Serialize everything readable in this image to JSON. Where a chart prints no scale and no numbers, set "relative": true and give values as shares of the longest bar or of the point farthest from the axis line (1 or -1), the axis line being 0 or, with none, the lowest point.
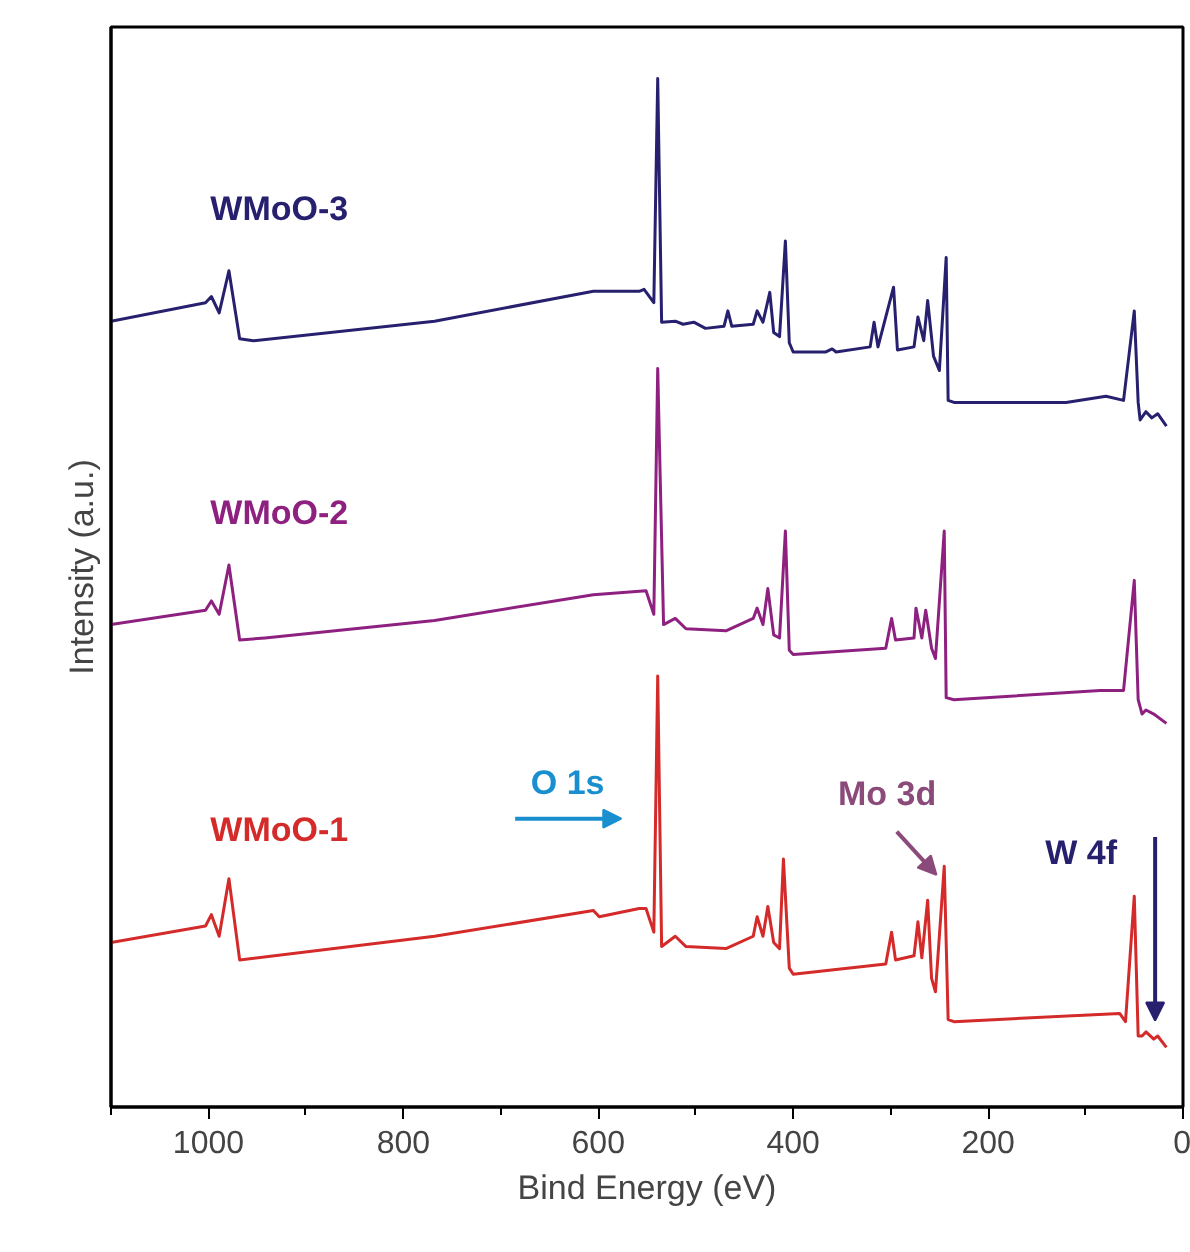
{
  "chart_data": {
    "type": "line",
    "relative": true,
    "xlabel": "Bind Energy (eV)",
    "ylabel": "Intensity (a.u.)",
    "xlim": [
      1100,
      0
    ],
    "xticks": [
      {
        "value": 1100,
        "label": null
      },
      1000,
      {
        "value": 900,
        "label": null
      },
      800,
      {
        "value": 700,
        "label": null
      },
      600,
      {
        "value": 500,
        "label": null
      },
      400,
      {
        "value": 300,
        "label": null
      },
      200,
      {
        "value": 100,
        "label": null
      },
      0
    ],
    "grid": false,
    "marker": "none",
    "line_style": "solid",
    "series": [
      {
        "name": "WMoO-3",
        "color": "#27206e",
        "x": [
          1100,
          1003,
          997,
          989,
          979,
          968,
          954,
          768,
          605,
          558,
          553,
          543,
          539,
          535,
          521,
          513,
          502,
          490,
          471,
          467,
          463,
          441,
          437,
          431,
          424,
          420,
          414,
          408,
          404,
          400,
          367,
          360,
          356,
          321,
          317,
          313,
          297,
          293,
          276,
          272,
          266,
          262,
          256,
          250,
          243,
          241,
          235,
          120,
          79,
          61,
          50,
          46,
          44,
          38,
          32,
          26,
          17
        ],
        "values": [
          0.764,
          0.782,
          0.788,
          0.772,
          0.813,
          0.747,
          0.745,
          0.764,
          0.793,
          0.793,
          0.795,
          0.782,
          1,
          0.763,
          0.764,
          0.761,
          0.763,
          0.757,
          0.759,
          0.774,
          0.759,
          0.761,
          0.774,
          0.763,
          0.792,
          0.753,
          0.749,
          0.842,
          0.743,
          0.734,
          0.734,
          0.737,
          0.734,
          0.739,
          0.763,
          0.739,
          0.797,
          0.736,
          0.739,
          0.768,
          0.745,
          0.784,
          0.73,
          0.716,
          0.826,
          0.687,
          0.685,
          0.685,
          0.691,
          0.687,
          0.774,
          0.685,
          0.668,
          0.676,
          0.67,
          0.674,
          0.662
        ]
      },
      {
        "name": "WMoO-2",
        "color": "#8e2180",
        "x": [
          1100,
          1003,
          997,
          989,
          979,
          968,
          942,
          768,
          605,
          551,
          543,
          539,
          533,
          521,
          510,
          469,
          441,
          437,
          431,
          426,
          420,
          414,
          408,
          404,
          400,
          305,
          299,
          295,
          276,
          274,
          268,
          264,
          258,
          254,
          245,
          243,
          235,
          85,
          61,
          50,
          46,
          42,
          38,
          30,
          17
        ],
        "values": [
          0.469,
          0.483,
          0.492,
          0.479,
          0.527,
          0.454,
          0.456,
          0.473,
          0.498,
          0.502,
          0.479,
          0.718,
          0.469,
          0.475,
          0.465,
          0.463,
          0.475,
          0.485,
          0.469,
          0.504,
          0.459,
          0.456,
          0.56,
          0.444,
          0.44,
          0.446,
          0.475,
          0.454,
          0.456,
          0.485,
          0.456,
          0.483,
          0.446,
          0.436,
          0.56,
          0.398,
          0.396,
          0.405,
          0.405,
          0.512,
          0.396,
          0.382,
          0.386,
          0.382,
          0.373
        ]
      },
      {
        "name": "WMoO-1",
        "color": "#d42a2a",
        "x": [
          1100,
          1003,
          997,
          989,
          979,
          968,
          768,
          605,
          599,
          558,
          551,
          543,
          539,
          535,
          521,
          510,
          469,
          441,
          437,
          431,
          426,
          420,
          414,
          410,
          404,
          400,
          305,
          299,
          295,
          276,
          272,
          268,
          262,
          258,
          254,
          245,
          241,
          235,
          65,
          59,
          50,
          46,
          42,
          38,
          30,
          26,
          17
        ],
        "values": [
          0.16,
          0.176,
          0.187,
          0.166,
          0.222,
          0.143,
          0.166,
          0.191,
          0.185,
          0.193,
          0.193,
          0.17,
          0.419,
          0.156,
          0.166,
          0.156,
          0.154,
          0.166,
          0.185,
          0.166,
          0.195,
          0.16,
          0.154,
          0.241,
          0.135,
          0.129,
          0.139,
          0.17,
          0.143,
          0.147,
          0.18,
          0.145,
          0.201,
          0.125,
          0.112,
          0.234,
          0.085,
          0.083,
          0.091,
          0.083,
          0.205,
          0.069,
          0.069,
          0.073,
          0.066,
          0.069,
          0.058
        ]
      }
    ],
    "annotations": [
      "O 1s",
      "Mo 3d",
      "W 4f"
    ]
  }
}
